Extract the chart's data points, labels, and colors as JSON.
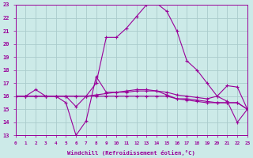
{
  "xlabel": "Windchill (Refroidissement éolien,°C)",
  "x_range": [
    0,
    23
  ],
  "y_range": [
    13,
    23
  ],
  "yticks": [
    13,
    14,
    15,
    16,
    17,
    18,
    19,
    20,
    21,
    22,
    23
  ],
  "xticks": [
    0,
    1,
    2,
    3,
    4,
    5,
    6,
    7,
    8,
    9,
    10,
    11,
    12,
    13,
    14,
    15,
    16,
    17,
    18,
    19,
    20,
    21,
    22,
    23
  ],
  "background_color": "#cceae8",
  "grid_color": "#aacccc",
  "line_color": "#990099",
  "lines": [
    {
      "x": [
        0,
        1,
        2,
        3,
        4,
        5,
        6,
        7,
        8,
        9,
        10,
        11,
        12,
        13,
        14,
        15,
        16,
        17,
        18,
        19,
        20,
        21,
        22,
        23
      ],
      "y": [
        16,
        16,
        16.5,
        16,
        16,
        16,
        15.2,
        16,
        17,
        20.5,
        20.5,
        21.2,
        22.1,
        23,
        23.1,
        22.5,
        21,
        18.7,
        18,
        17,
        16,
        16.8,
        16.7,
        15
      ]
    },
    {
      "x": [
        0,
        1,
        2,
        3,
        4,
        5,
        6,
        7,
        8,
        9,
        10,
        11,
        12,
        13,
        14,
        15,
        16,
        17,
        18,
        19,
        20,
        21,
        22,
        23
      ],
      "y": [
        16,
        16,
        16,
        16,
        16,
        15.5,
        13,
        14.1,
        17.5,
        16.3,
        16.3,
        16.3,
        16.4,
        16.4,
        16.4,
        16.1,
        15.8,
        15.7,
        15.6,
        15.5,
        15.5,
        15.5,
        15.5,
        15
      ]
    },
    {
      "x": [
        0,
        1,
        2,
        3,
        4,
        5,
        6,
        7,
        8,
        9,
        10,
        11,
        12,
        13,
        14,
        15,
        16,
        17,
        18,
        19,
        20,
        21,
        22,
        23
      ],
      "y": [
        16,
        16,
        16,
        16,
        16,
        16,
        16,
        16,
        16.1,
        16.2,
        16.3,
        16.4,
        16.5,
        16.5,
        16.4,
        16.3,
        16.1,
        16.0,
        15.9,
        15.8,
        16,
        15.6,
        14,
        15
      ]
    },
    {
      "x": [
        0,
        1,
        2,
        3,
        4,
        5,
        6,
        7,
        8,
        9,
        10,
        11,
        12,
        13,
        14,
        15,
        16,
        17,
        18,
        19,
        20,
        21,
        22,
        23
      ],
      "y": [
        16,
        16,
        16,
        16,
        16,
        16,
        16,
        16,
        16,
        16,
        16,
        16,
        16,
        16,
        16,
        16,
        15.8,
        15.8,
        15.7,
        15.6,
        15.5,
        15.5,
        15.5,
        15
      ]
    }
  ]
}
